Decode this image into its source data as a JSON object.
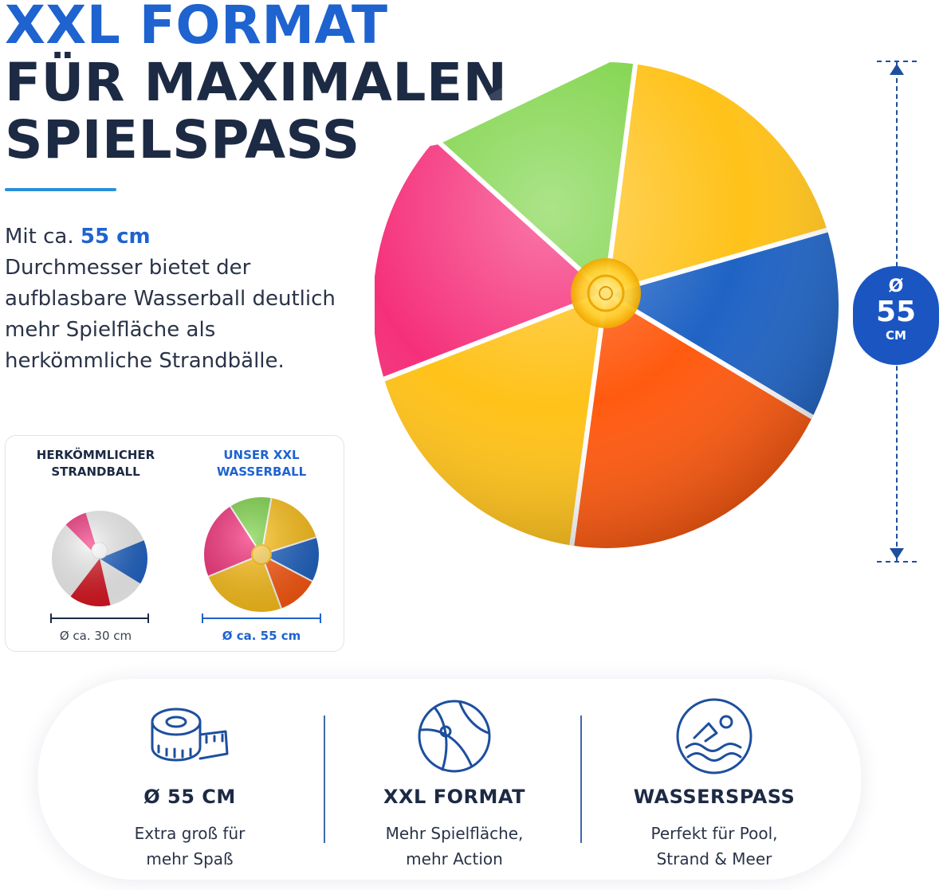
{
  "headline": {
    "line1": "XXL FORMAT",
    "line2": "FÜR MAXIMALEN",
    "line3": "SPIELSPASS"
  },
  "description": {
    "prefix": "Mit ca. ",
    "highlight": "55 cm",
    "rest": "Durchmesser bietet der aufblasbare Wasserball deutlich mehr Spielfläche als herkömmliche Strandbälle."
  },
  "comparison": {
    "left_title_1": "HERKÖMMLICHER",
    "left_title_2": "STRANDBALL",
    "left_size": "Ø ca. 30 cm",
    "right_title_1": "UNSER XXL",
    "right_title_2": "WASSERBALL",
    "right_size": "Ø ca. 55 cm"
  },
  "dimension_badge": {
    "symbol": "Ø",
    "value": "55",
    "unit": "CM"
  },
  "features": [
    {
      "title": "Ø 55 CM",
      "desc_1": "Extra groß für",
      "desc_2": "mehr Spaß",
      "icon": "tape-measure-icon"
    },
    {
      "title": "XXL FORMAT",
      "desc_1": "Mehr Spielfläche,",
      "desc_2": "mehr Action",
      "icon": "beach-ball-icon"
    },
    {
      "title": "WASSERSPASS",
      "desc_1": "Perfekt für Pool,",
      "desc_2": "Strand & Meer",
      "icon": "swimmer-icon"
    }
  ],
  "colors": {
    "brand_blue": "#1e63cf",
    "navy": "#1d2a44",
    "ball_green": "#7fd44a",
    "ball_yellow": "#ffc21a",
    "ball_blue": "#1f63c4",
    "ball_orange": "#ff5a10",
    "ball_pink": "#f5307a"
  }
}
